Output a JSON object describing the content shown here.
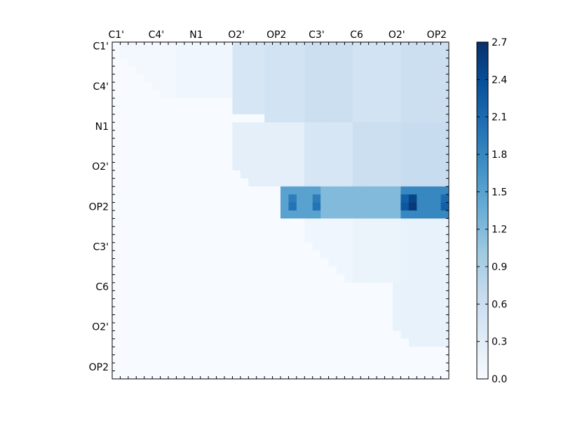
{
  "chart_data": {
    "type": "heatmap",
    "title": "",
    "xlabel": "",
    "ylabel": "",
    "n_rows": 42,
    "n_cols": 42,
    "x_tick_labels": [
      "C1'",
      "C4'",
      "N1",
      "O2'",
      "OP2",
      "C3'",
      "C6",
      "O2'",
      "OP2"
    ],
    "y_tick_labels": [
      "C1'",
      "C4'",
      "N1",
      "O2'",
      "OP2",
      "C3'",
      "C6",
      "O2'",
      "OP2"
    ],
    "x_axis_position": "top",
    "colormap": "Blues",
    "value_range": [
      0.0,
      2.7
    ],
    "colorbar_ticks": [
      "0.0",
      "0.3",
      "0.6",
      "0.9",
      "1.2",
      "1.5",
      "1.8",
      "2.1",
      "2.4",
      "2.7"
    ],
    "colorbar_position": "right",
    "grid": false,
    "blocks": [
      {
        "rows": [
          0,
          5
        ],
        "cols": [
          1,
          2
        ],
        "value": 0.08
      },
      {
        "rows": [
          0,
          7
        ],
        "cols": [
          2,
          8
        ],
        "value": 0.06
      },
      {
        "rows": [
          0,
          7
        ],
        "cols": [
          8,
          15
        ],
        "value": 0.1
      },
      {
        "rows": [
          0,
          9
        ],
        "cols": [
          15,
          19
        ],
        "value": 0.45
      },
      {
        "rows": [
          0,
          10
        ],
        "cols": [
          19,
          24
        ],
        "value": 0.5
      },
      {
        "rows": [
          0,
          10
        ],
        "cols": [
          24,
          30
        ],
        "value": 0.6
      },
      {
        "rows": [
          0,
          10
        ],
        "cols": [
          30,
          36
        ],
        "value": 0.5
      },
      {
        "rows": [
          0,
          10
        ],
        "cols": [
          36,
          42
        ],
        "value": 0.6
      },
      {
        "rows": [
          10,
          18
        ],
        "cols": [
          15,
          24
        ],
        "value": 0.25
      },
      {
        "rows": [
          10,
          18
        ],
        "cols": [
          24,
          30
        ],
        "value": 0.45
      },
      {
        "rows": [
          10,
          18
        ],
        "cols": [
          30,
          36
        ],
        "value": 0.6
      },
      {
        "rows": [
          10,
          18
        ],
        "cols": [
          36,
          42
        ],
        "value": 0.65
      },
      {
        "rows": [
          18,
          22
        ],
        "cols": [
          21,
          26
        ],
        "value": 1.5
      },
      {
        "rows": [
          18,
          22
        ],
        "cols": [
          26,
          36
        ],
        "value": 1.2
      },
      {
        "rows": [
          18,
          22
        ],
        "cols": [
          36,
          42
        ],
        "value": 1.8
      },
      {
        "rows": [
          22,
          30
        ],
        "cols": [
          24,
          30
        ],
        "value": 0.1
      },
      {
        "rows": [
          22,
          30
        ],
        "cols": [
          30,
          36
        ],
        "value": 0.15
      },
      {
        "rows": [
          22,
          30
        ],
        "cols": [
          36,
          42
        ],
        "value": 0.2
      },
      {
        "rows": [
          30,
          38
        ],
        "cols": [
          35,
          42
        ],
        "value": 0.2
      }
    ],
    "strong_cells": [
      {
        "row": 19,
        "col": 37,
        "value": 2.5
      },
      {
        "row": 20,
        "col": 37,
        "value": 2.6
      },
      {
        "row": 19,
        "col": 36,
        "value": 2.2
      },
      {
        "row": 20,
        "col": 36,
        "value": 2.3
      },
      {
        "row": 19,
        "col": 41,
        "value": 2.1
      },
      {
        "row": 20,
        "col": 41,
        "value": 2.2
      },
      {
        "row": 19,
        "col": 25,
        "value": 1.9
      },
      {
        "row": 20,
        "col": 25,
        "value": 2.0
      },
      {
        "row": 19,
        "col": 22,
        "value": 1.9
      },
      {
        "row": 20,
        "col": 22,
        "value": 2.0
      }
    ]
  }
}
